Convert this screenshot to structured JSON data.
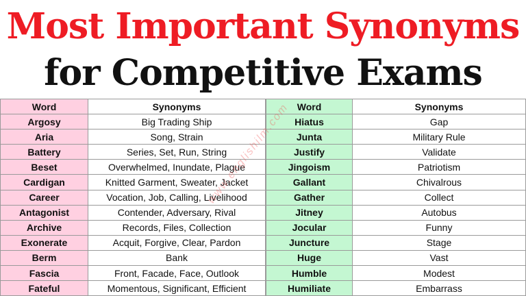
{
  "title": {
    "line1": "Most Important Synonyms",
    "line2": "for Competitive Exams",
    "line1_color": "#ee1c24",
    "line2_color": "#111111"
  },
  "colors": {
    "left_word_bg": "#ffd0e1",
    "right_word_bg": "#c4f7d2"
  },
  "watermark": "www.englishilm.com",
  "left_table": {
    "headers": [
      "Word",
      "Synonyms"
    ],
    "rows": [
      [
        "Argosy",
        "Big Trading Ship"
      ],
      [
        "Aria",
        "Song, Strain"
      ],
      [
        "Battery",
        "Series, Set, Run, String"
      ],
      [
        "Beset",
        "Overwhelmed, Inundate, Plague"
      ],
      [
        "Cardigan",
        "Knitted Garment, Sweater, Jacket"
      ],
      [
        "Career",
        "Vocation, Job, Calling, Livelihood"
      ],
      [
        "Antagonist",
        "Contender, Adversary, Rival"
      ],
      [
        "Archive",
        "Records, Files, Collection"
      ],
      [
        "Exonerate",
        "Acquit, Forgive, Clear, Pardon"
      ],
      [
        "Berm",
        "Bank"
      ],
      [
        "Fascia",
        "Front, Facade, Face, Outlook"
      ],
      [
        "Fateful",
        "Momentous, Significant, Efficient"
      ]
    ]
  },
  "right_table": {
    "headers": [
      "Word",
      "Synonyms"
    ],
    "rows": [
      [
        "Hiatus",
        "Gap"
      ],
      [
        "Junta",
        "Military Rule"
      ],
      [
        "Justify",
        "Validate"
      ],
      [
        "Jingoism",
        "Patriotism"
      ],
      [
        "Gallant",
        "Chivalrous"
      ],
      [
        "Gather",
        "Collect"
      ],
      [
        "Jitney",
        "Autobus"
      ],
      [
        "Jocular",
        "Funny"
      ],
      [
        "Juncture",
        "Stage"
      ],
      [
        "Huge",
        "Vast"
      ],
      [
        "Humble",
        "Modest"
      ],
      [
        "Humiliate",
        "Embarrass"
      ]
    ]
  }
}
